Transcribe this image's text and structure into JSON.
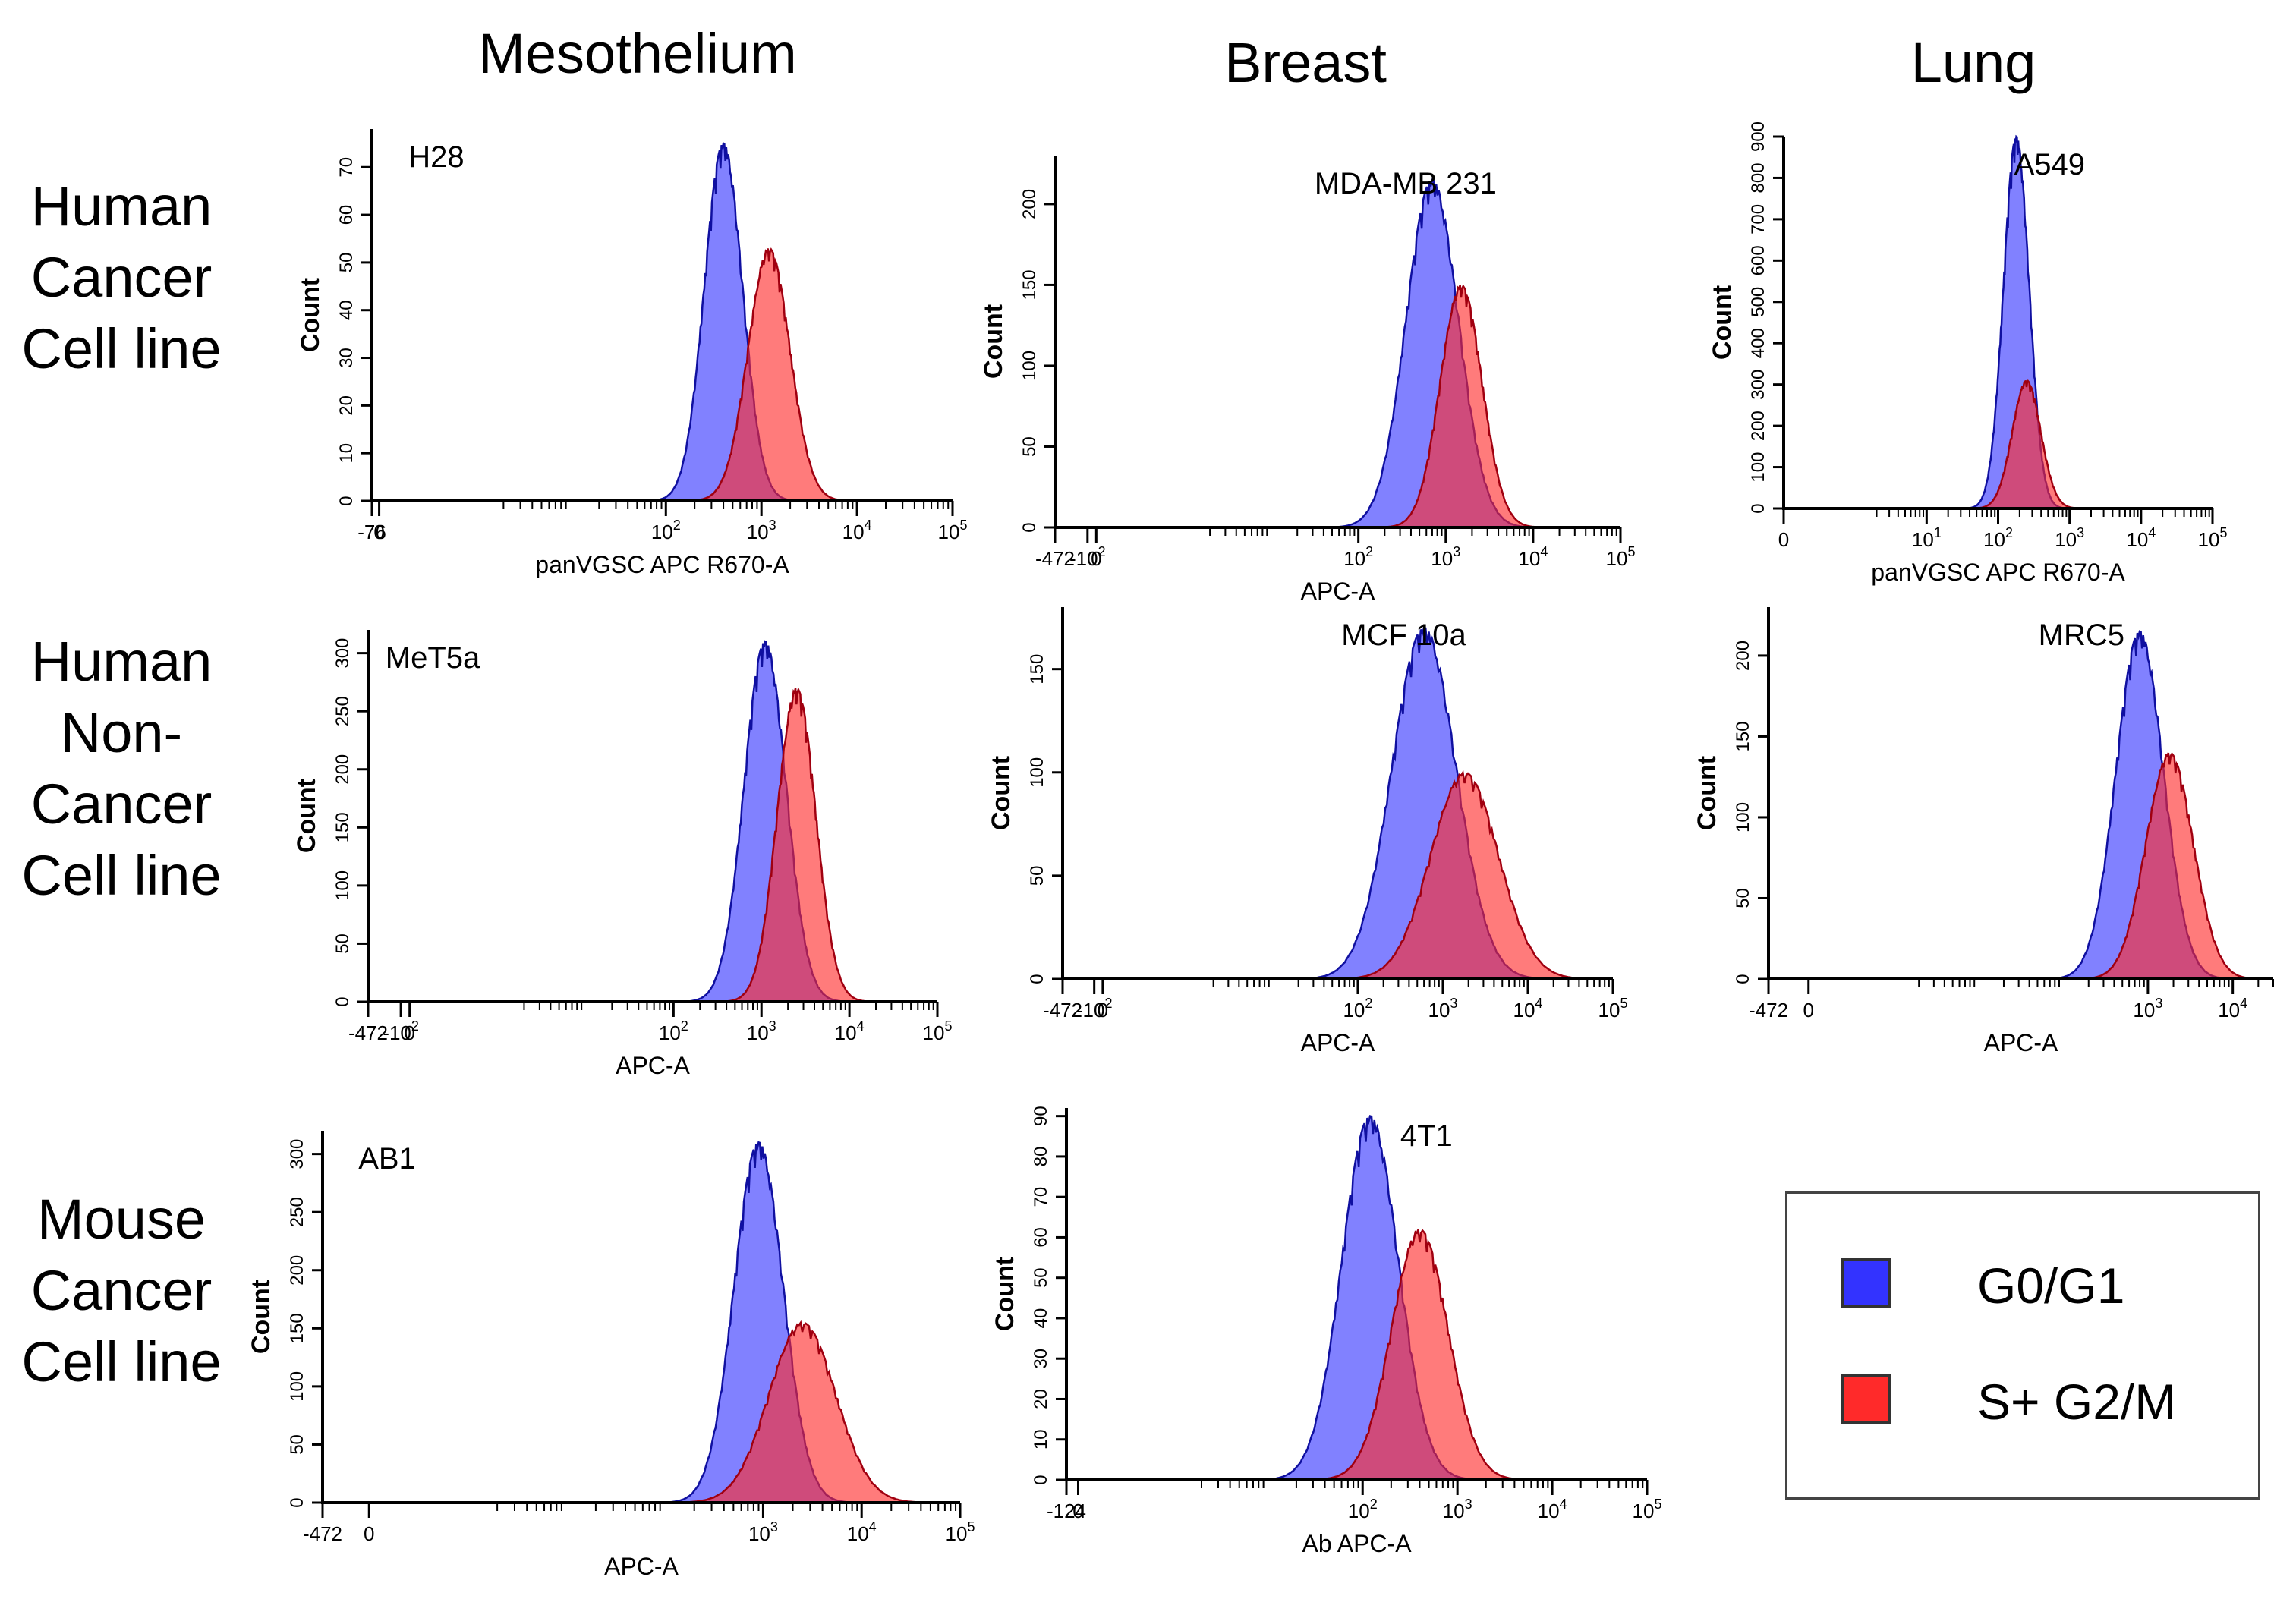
{
  "columns": [
    "Mesothelium",
    "Breast",
    "Lung"
  ],
  "rows": [
    [
      "Human",
      "Cancer",
      "Cell line"
    ],
    [
      "Human",
      "Non-",
      "Cancer",
      "Cell line"
    ],
    [
      "Mouse",
      "Cancer",
      "Cell line"
    ]
  ],
  "legend": [
    {
      "label": "G0/G1",
      "color": "#3333ff"
    },
    {
      "label": "S+ G2/M",
      "color": "#ff2a2a"
    }
  ],
  "chart_data": [
    {
      "type": "area",
      "title": "H28",
      "xlabel": "panVGSC APC R670-A",
      "ylabel": "Count",
      "xlim": [
        -76,
        100000
      ],
      "ylim": [
        0,
        78
      ],
      "xticks": [
        "-76",
        "0",
        "10^2",
        "10^3",
        "10^4",
        "10^5"
      ],
      "yticks": [
        "0",
        "10",
        "20",
        "30",
        "40",
        "50",
        "60",
        "70"
      ],
      "series": [
        {
          "name": "G0/G1",
          "color": "#3333ff",
          "peak_x": 400,
          "peak_y": 75,
          "width": 0.2
        },
        {
          "name": "S+ G2/M",
          "color": "#ff2a2a",
          "peak_x": 1200,
          "peak_y": 53,
          "width": 0.22
        }
      ]
    },
    {
      "type": "area",
      "title": "MDA-MB 231",
      "xlabel": "APC-A",
      "ylabel": "Count",
      "xlim": [
        -472,
        100000
      ],
      "ylim": [
        0,
        230
      ],
      "xticks": [
        "-472",
        "-10^2",
        "0",
        "10^2",
        "10^3",
        "10^4",
        "10^5"
      ],
      "yticks": [
        "0",
        "50",
        "100",
        "150",
        "200"
      ],
      "series": [
        {
          "name": "G0/G1",
          "color": "#3333ff",
          "peak_x": 700,
          "peak_y": 215,
          "width": 0.3
        },
        {
          "name": "S+ G2/M",
          "color": "#ff2a2a",
          "peak_x": 1500,
          "peak_y": 150,
          "width": 0.24
        }
      ]
    },
    {
      "type": "area",
      "title": "A549",
      "xlabel": "panVGSC APC R670-A",
      "ylabel": "Count",
      "xlim": [
        0,
        100000
      ],
      "ylim": [
        0,
        900
      ],
      "xticks": [
        "0",
        "10^1",
        "10^2",
        "10^3",
        "10^4",
        "10^5"
      ],
      "yticks": [
        "0",
        "100",
        "200",
        "300",
        "400",
        "500",
        "600",
        "700",
        "800",
        "900"
      ],
      "series": [
        {
          "name": "G0/G1",
          "color": "#3333ff",
          "peak_x": 180,
          "peak_y": 900,
          "width": 0.18
        },
        {
          "name": "S+ G2/M",
          "color": "#ff2a2a",
          "peak_x": 250,
          "peak_y": 310,
          "width": 0.2
        }
      ]
    },
    {
      "type": "area",
      "title": "MeT5a",
      "xlabel": "APC-A",
      "ylabel": "Count",
      "xlim": [
        -472,
        100000
      ],
      "ylim": [
        0,
        320
      ],
      "xticks": [
        "-472",
        "-10^2",
        "0",
        "10^2",
        "10^3",
        "10^4",
        "10^5"
      ],
      "yticks": [
        "0",
        "50",
        "100",
        "150",
        "200",
        "250",
        "300"
      ],
      "series": [
        {
          "name": "G0/G1",
          "color": "#3333ff",
          "peak_x": 1100,
          "peak_y": 310,
          "width": 0.24
        },
        {
          "name": "S+ G2/M",
          "color": "#ff2a2a",
          "peak_x": 2500,
          "peak_y": 270,
          "width": 0.22
        }
      ]
    },
    {
      "type": "area",
      "title": "MCF 10a",
      "xlabel": "APC-A",
      "ylabel": "Count",
      "xlim": [
        -472,
        100000
      ],
      "ylim": [
        0,
        180
      ],
      "xticks": [
        "-472",
        "-10^2",
        "0",
        "10^2",
        "10^3",
        "10^4",
        "10^5"
      ],
      "yticks": [
        "0",
        "50",
        "100",
        "150"
      ],
      "series": [
        {
          "name": "G0/G1",
          "color": "#3333ff",
          "peak_x": 600,
          "peak_y": 170,
          "width": 0.38
        },
        {
          "name": "S+ G2/M",
          "color": "#ff2a2a",
          "peak_x": 1800,
          "peak_y": 100,
          "width": 0.4
        }
      ]
    },
    {
      "type": "area",
      "title": "MRC5",
      "xlabel": "APC-A",
      "ylabel": "Count",
      "xlim": [
        -472,
        30000
      ],
      "ylim": [
        0,
        230
      ],
      "xticks": [
        "-472",
        "0",
        "10^3",
        "10^4"
      ],
      "yticks": [
        "0",
        "50",
        "100",
        "150",
        "200"
      ],
      "series": [
        {
          "name": "G0/G1",
          "color": "#3333ff",
          "peak_x": 800,
          "peak_y": 215,
          "width": 0.28
        },
        {
          "name": "S+ G2/M",
          "color": "#ff2a2a",
          "peak_x": 1800,
          "peak_y": 140,
          "width": 0.28
        }
      ]
    },
    {
      "type": "area",
      "title": "AB1",
      "xlabel": "APC-A",
      "ylabel": "Count",
      "xlim": [
        -472,
        100000
      ],
      "ylim": [
        0,
        320
      ],
      "xticks": [
        "-472",
        "0",
        "10^3",
        "10^4",
        "10^5"
      ],
      "yticks": [
        "0",
        "50",
        "100",
        "150",
        "200",
        "250",
        "300"
      ],
      "series": [
        {
          "name": "G0/G1",
          "color": "#3333ff",
          "peak_x": 900,
          "peak_y": 310,
          "width": 0.25
        },
        {
          "name": "S+ G2/M",
          "color": "#ff2a2a",
          "peak_x": 2500,
          "peak_y": 155,
          "width": 0.34
        }
      ]
    },
    {
      "type": "area",
      "title": "4T1",
      "xlabel": "Ab APC-A",
      "ylabel": "Count",
      "xlim": [
        -124,
        100000
      ],
      "ylim": [
        0,
        92
      ],
      "xticks": [
        "-124",
        "0",
        "10^2",
        "10^3",
        "10^4",
        "10^5"
      ],
      "yticks": [
        "0",
        "10",
        "20",
        "30",
        "40",
        "50",
        "60",
        "70",
        "80",
        "90"
      ],
      "series": [
        {
          "name": "G0/G1",
          "color": "#3333ff",
          "peak_x": 120,
          "peak_y": 90,
          "width": 0.3
        },
        {
          "name": "S+ G2/M",
          "color": "#ff2a2a",
          "peak_x": 400,
          "peak_y": 62,
          "width": 0.3
        }
      ]
    }
  ]
}
